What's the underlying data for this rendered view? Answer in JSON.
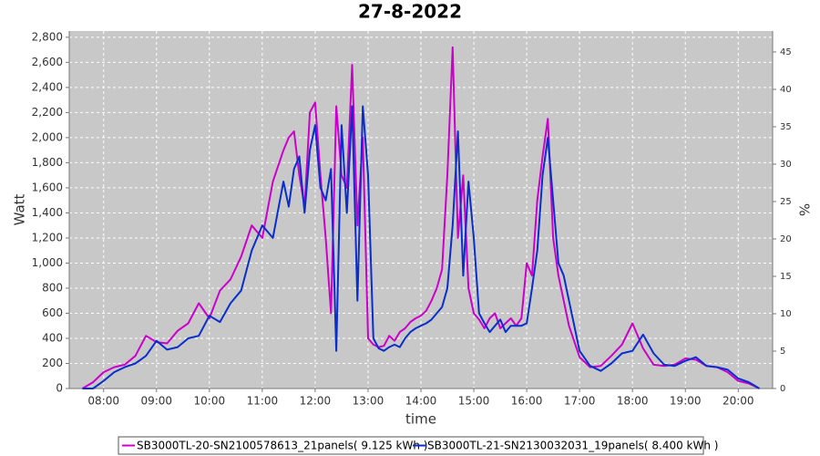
{
  "chart_data": {
    "type": "line",
    "title": "27-8-2022",
    "y_label": "Watt",
    "y2_label": "%",
    "x_label": "time",
    "grid": true,
    "legend": "bottom",
    "xlim": [
      7.35,
      20.65
    ],
    "xticks": [
      {
        "value": 8,
        "label": "08:00"
      },
      {
        "value": 9,
        "label": "09:00"
      },
      {
        "value": 10,
        "label": "10:00"
      },
      {
        "value": 11,
        "label": "11:00"
      },
      {
        "value": 12,
        "label": "12:00"
      },
      {
        "value": 13,
        "label": "13:00"
      },
      {
        "value": 14,
        "label": "14:00"
      },
      {
        "value": 15,
        "label": "15:00"
      },
      {
        "value": 16,
        "label": "16:00"
      },
      {
        "value": 17,
        "label": "17:00"
      },
      {
        "value": 18,
        "label": "18:00"
      },
      {
        "value": 19,
        "label": "19:00"
      },
      {
        "value": 20,
        "label": "20:00"
      }
    ],
    "ylim": [
      0,
      2850
    ],
    "yticks": [
      0,
      200,
      400,
      600,
      800,
      {
        "value": 1000,
        "label": "1,000"
      },
      {
        "value": 1200,
        "label": "1,200"
      },
      {
        "value": 1400,
        "label": "1,400"
      },
      {
        "value": 1600,
        "label": "1,600"
      },
      {
        "value": 1800,
        "label": "1,800"
      },
      {
        "value": 2000,
        "label": "2,000"
      },
      {
        "value": 2200,
        "label": "2,200"
      },
      {
        "value": 2400,
        "label": "2,400"
      },
      {
        "value": 2600,
        "label": "2,600"
      },
      {
        "value": 2800,
        "label": "2,800"
      }
    ],
    "y2lim": [
      0,
      47.8
    ],
    "y2ticks": [
      0,
      5,
      10,
      15,
      20,
      25,
      30,
      35,
      40,
      45
    ],
    "x": [
      7.6,
      7.8,
      8.0,
      8.2,
      8.4,
      8.6,
      8.8,
      9.0,
      9.2,
      9.4,
      9.6,
      9.8,
      10.0,
      10.2,
      10.4,
      10.6,
      10.8,
      11.0,
      11.2,
      11.4,
      11.5,
      11.6,
      11.7,
      11.8,
      11.9,
      12.0,
      12.1,
      12.2,
      12.3,
      12.4,
      12.5,
      12.6,
      12.7,
      12.8,
      12.9,
      13.0,
      13.1,
      13.2,
      13.3,
      13.4,
      13.5,
      13.6,
      13.7,
      13.8,
      13.9,
      14.0,
      14.1,
      14.2,
      14.3,
      14.4,
      14.5,
      14.6,
      14.7,
      14.8,
      14.9,
      15.0,
      15.1,
      15.2,
      15.3,
      15.4,
      15.5,
      15.6,
      15.7,
      15.8,
      15.9,
      16.0,
      16.1,
      16.2,
      16.3,
      16.4,
      16.5,
      16.6,
      16.7,
      16.8,
      17.0,
      17.2,
      17.4,
      17.6,
      17.8,
      18.0,
      18.2,
      18.4,
      18.6,
      18.8,
      19.0,
      19.2,
      19.4,
      19.6,
      19.8,
      20.0,
      20.2,
      20.4
    ],
    "series": [
      {
        "name": "SB3000TL-20-SN2100578613_21panels( 9.125 kWh )",
        "color": "#cc00cc",
        "values": [
          0,
          50,
          130,
          170,
          190,
          260,
          420,
          370,
          360,
          460,
          520,
          680,
          560,
          780,
          870,
          1050,
          1300,
          1200,
          1650,
          1900,
          2000,
          2050,
          1700,
          1450,
          2200,
          2280,
          1700,
          1200,
          600,
          2250,
          1700,
          1600,
          2580,
          1300,
          2000,
          400,
          350,
          330,
          340,
          420,
          380,
          450,
          480,
          530,
          560,
          580,
          620,
          700,
          800,
          950,
          1700,
          2720,
          1200,
          1700,
          800,
          600,
          550,
          480,
          560,
          600,
          480,
          520,
          560,
          500,
          560,
          1000,
          900,
          1500,
          1850,
          2150,
          1200,
          900,
          700,
          500,
          250,
          170,
          180,
          260,
          350,
          520,
          320,
          190,
          180,
          190,
          240,
          230,
          180,
          170,
          130,
          60,
          40,
          0
        ]
      },
      {
        "name": "SB3000TL-21-SN2130032031_19panels( 8.400 kWh )",
        "color": "#0a2ecc",
        "values": [
          0,
          0,
          60,
          130,
          170,
          200,
          260,
          380,
          310,
          330,
          400,
          420,
          580,
          530,
          680,
          780,
          1100,
          1300,
          1200,
          1650,
          1450,
          1750,
          1850,
          1400,
          1900,
          2100,
          1600,
          1500,
          1750,
          300,
          2100,
          1400,
          2250,
          700,
          2250,
          1700,
          400,
          320,
          300,
          330,
          350,
          330,
          400,
          450,
          480,
          500,
          520,
          550,
          600,
          650,
          800,
          1300,
          2050,
          900,
          1650,
          1200,
          600,
          520,
          450,
          500,
          550,
          450,
          500,
          500,
          500,
          520,
          800,
          1100,
          1700,
          2000,
          1500,
          1000,
          900,
          700,
          300,
          180,
          140,
          200,
          280,
          300,
          430,
          280,
          190,
          180,
          220,
          250,
          180,
          170,
          150,
          80,
          50,
          0
        ]
      }
    ]
  }
}
